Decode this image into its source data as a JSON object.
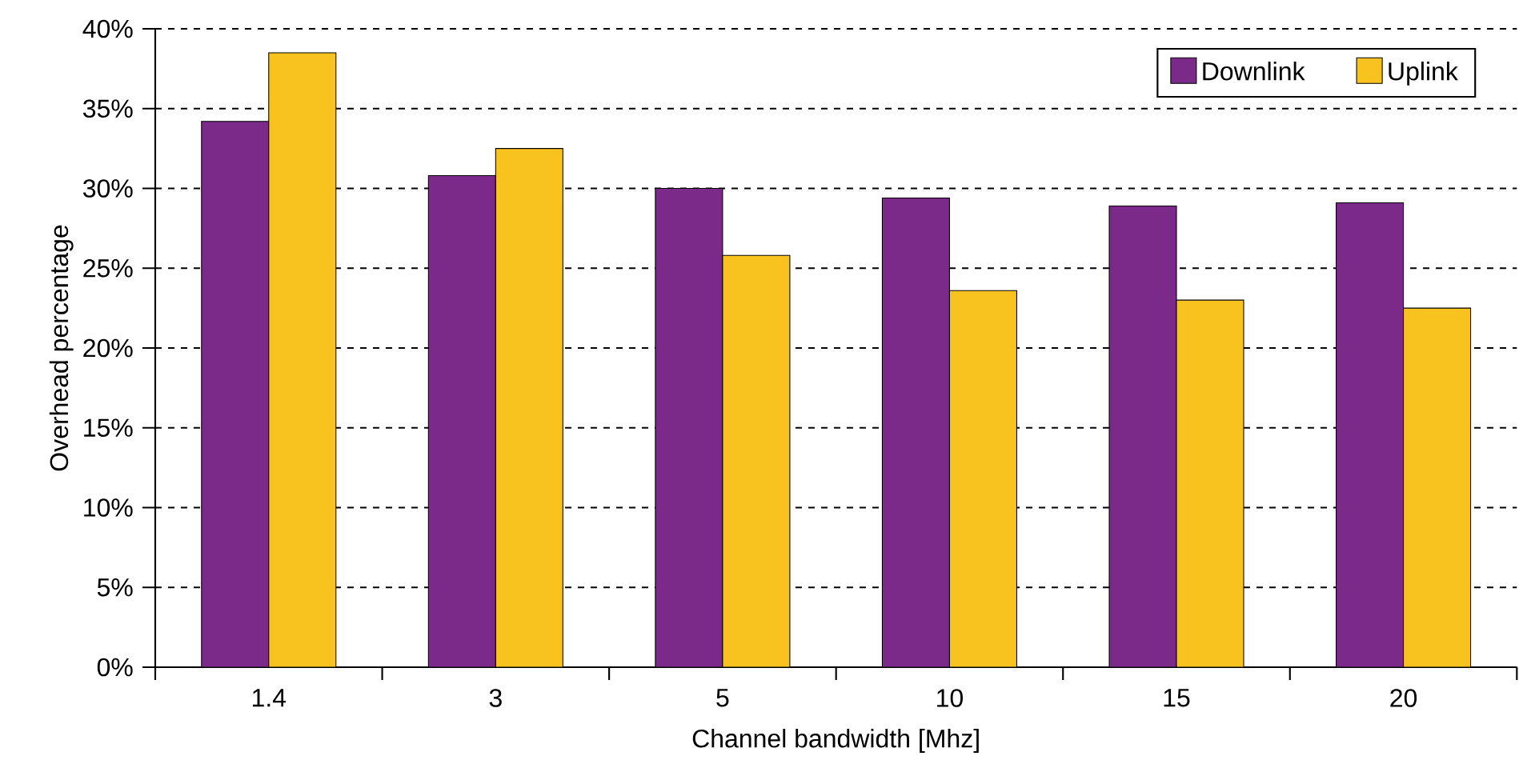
{
  "chart_data": {
    "type": "bar",
    "xlabel": "Channel bandwidth [Mhz]",
    "ylabel": "Overhead percentage",
    "categories": [
      "1.4",
      "3",
      "5",
      "10",
      "15",
      "20"
    ],
    "series": [
      {
        "name": "Downlink",
        "color": "#7b2a8a",
        "values": [
          34.2,
          30.8,
          30.0,
          29.4,
          28.9,
          29.1
        ]
      },
      {
        "name": "Uplink",
        "color": "#f9c31f",
        "values": [
          38.5,
          32.5,
          25.8,
          23.6,
          23.0,
          22.5
        ]
      }
    ],
    "ylim": [
      0,
      40
    ],
    "yticks": [
      {
        "value": 0,
        "label": "0%"
      },
      {
        "value": 5,
        "label": "5%"
      },
      {
        "value": 10,
        "label": "10%"
      },
      {
        "value": 15,
        "label": "15%"
      },
      {
        "value": 20,
        "label": "20%"
      },
      {
        "value": 25,
        "label": "25%"
      },
      {
        "value": 30,
        "label": "30%"
      },
      {
        "value": 35,
        "label": "35%"
      },
      {
        "value": 40,
        "label": "40%"
      }
    ],
    "grid": "y",
    "line_style": "dashed",
    "legend": "top right"
  }
}
